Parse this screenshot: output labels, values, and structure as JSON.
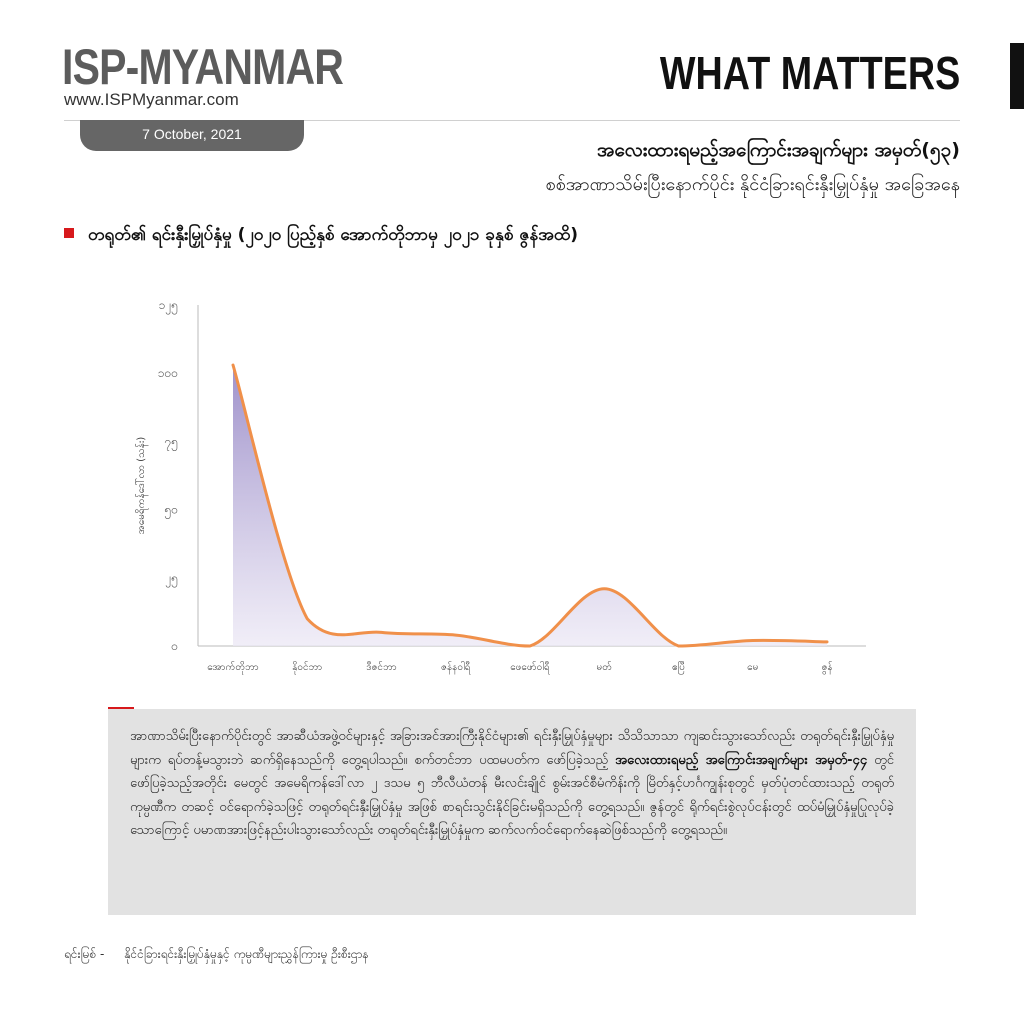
{
  "header": {
    "brand": "ISP-MYANMAR",
    "url": "www.ISPMyanmar.com",
    "date": "7 October, 2021",
    "series_title": "WHAT MATTERS"
  },
  "headline": "အလေးထားရမည့်အကြောင်းအချက်များ အမှတ်(၅၃)",
  "subheadline": "စစ်အာဏာသိမ်းပြီးနောက်ပိုင်း နိုင်ငံခြားရင်းနှီးမြှုပ်နှံမှု အခြေအနေ",
  "chart_heading": "တရုတ်၏ ရင်းနှီးမြှုပ်နှံမှု (၂၀၂၀ ပြည့်နှစ် အောက်တိုဘာမှ ၂၀၂၁ ခုနှစ် ဇွန်အထိ)",
  "colors": {
    "accent": "#d7191c",
    "line": "#f0904a",
    "fill": "#a89bd0"
  },
  "chart_data": {
    "type": "area",
    "categories": [
      "အောက်တိုဘာ",
      "နိုဝင်ဘာ",
      "ဒီဇင်ဘာ",
      "ဇန်နဝါရီ",
      "ဖေဖော်ဝါရီ",
      "မတ်",
      "ဧပြီ",
      "မေ",
      "ဇွန်"
    ],
    "values": [
      103,
      10,
      5,
      4,
      0,
      21,
      0,
      2,
      1.5
    ],
    "ylabel": "အမေရိကန်ဒေါ်လာ (သန်း)",
    "yticks": [
      "၀",
      "၂၅",
      "၅၀",
      "၇၅",
      "၁၀၀",
      "၁၂၅"
    ],
    "ylim": [
      0,
      125
    ],
    "grid": false
  },
  "summary": {
    "part1": "အာဏာသိမ်းပြီးနောက်ပိုင်းတွင် အာဆီယံအဖွဲ့ဝင်များနှင့် အခြားအင်အားကြီးနိုင်ငံများ၏ ရင်းနှီးမြှုပ်နှံမှုများ သိသိသာသာ ကျဆင်းသွားသော်လည်း တရုတ်ရင်းနှီးမြှုပ်နှံမှုများက ရပ်တန့်မသွားဘဲ ဆက်ရှိနေသည်ကို တွေ့ရပါသည်။ စက်တင်ဘာ ပထမပတ်က ဖော်ပြခဲ့သည့် ",
    "bold": "အလေးထားရမည့် အကြောင်းအချက်များ အမှတ်-၄၄",
    "part2": " တွင် ဖော်ပြခဲ့သည့်အတိုင်း မေတွင် အမေရိကန်ဒေါ်လာ ၂ ဒသမ ၅ ဘီလီယံတန် မီးလင်းချိုင် စွမ်းအင်စီမံကိန်းကို မြိတ်နှင့်ဟင်္ဂကျွန်းစုတွင် မှတ်ပုံတင်ထားသည့် တရုတ်ကုမ္ပဏီက တဆင့် ဝင်ရောက်ခဲ့သဖြင့် တရုတ်ရင်းနှီးမြှုပ်နှံမှု အဖြစ် စာရင်းသွင်းနိုင်ခြင်းမရှိသည်ကို တွေ့ရသည်။ ဇွန်တွင် ရိုက်ရင်းစွဲလုပ်ငန်းတွင် ထပ်မံမြှုပ်နှံမှုပြုလုပ်ခဲ့သောကြောင့် ပမာဏအားဖြင့်နည်းပါးသွားသော်လည်း တရုတ်ရင်းနှီးမြှုပ်နှံမှုက ဆက်လက်ဝင်ရောက်နေဆဲဖြစ်သည်ကို တွေ့ရသည်။"
  },
  "source": {
    "label": "ရင်းမြစ် -",
    "text": "နိုင်ငံခြားရင်းနှီးမြှုပ်နှံမှုနှင့် ကုမ္ပဏီများညွှန်ကြားမှု ဦးစီးဌာန"
  }
}
